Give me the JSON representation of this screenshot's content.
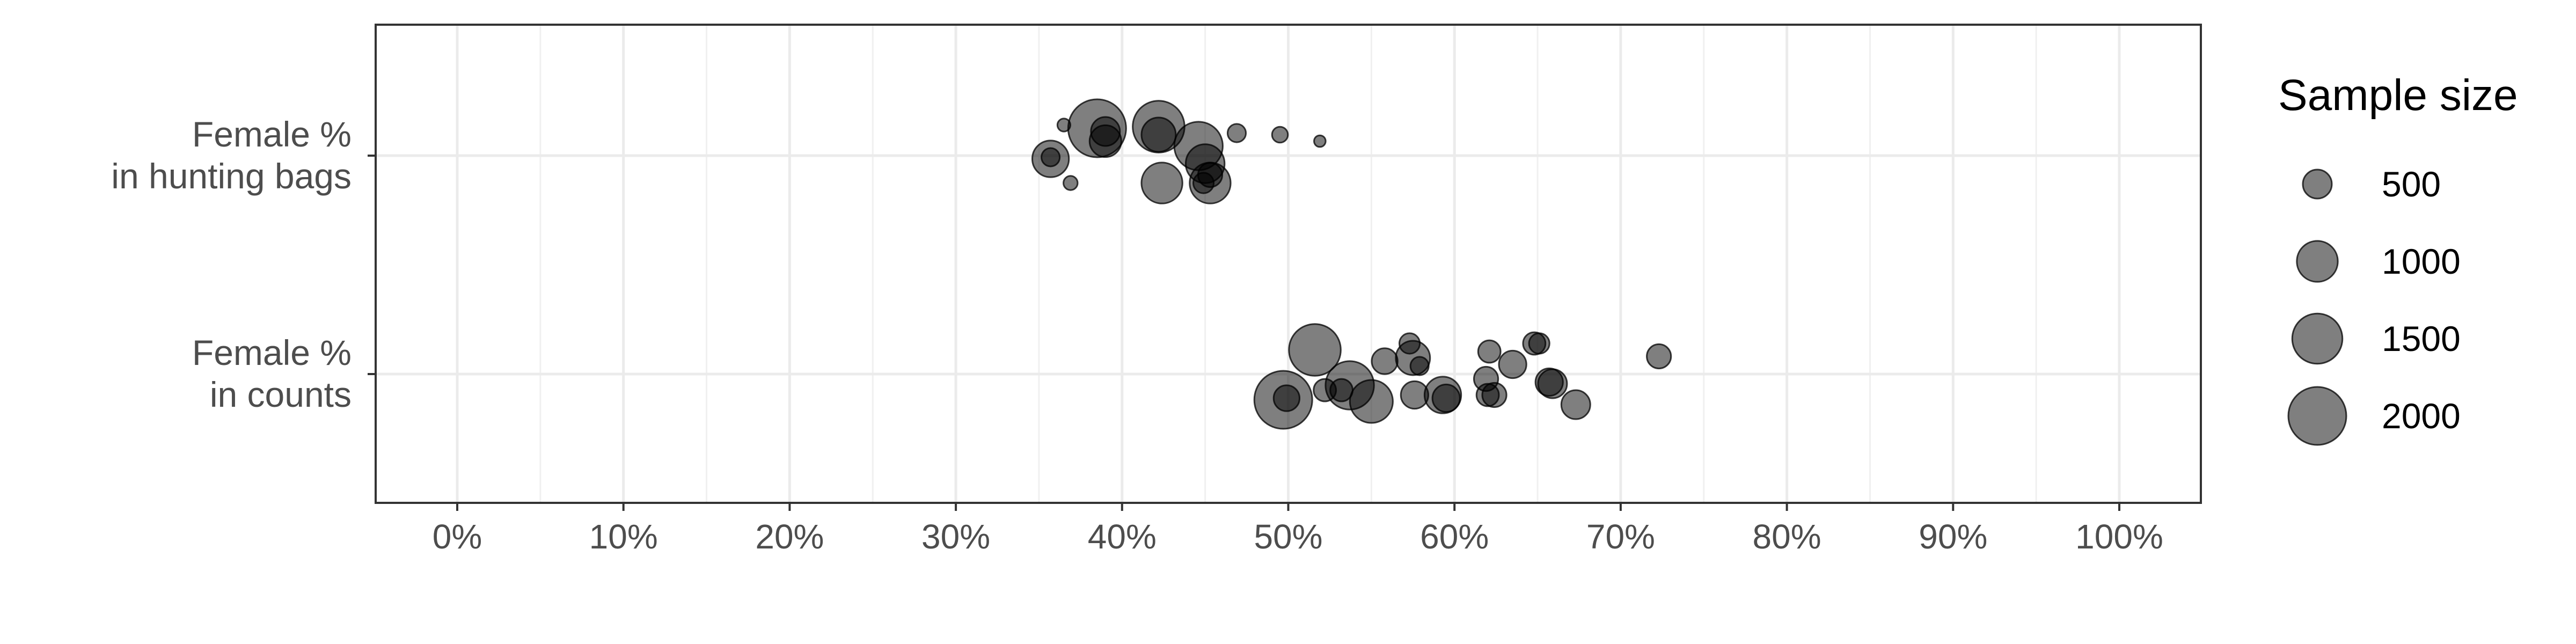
{
  "chart_data": {
    "type": "scatter",
    "title": "",
    "xlabel": "",
    "ylabel": "",
    "xlim": [
      0,
      1
    ],
    "x_tick_values": [
      0,
      0.1,
      0.2,
      0.3,
      0.4,
      0.5,
      0.6,
      0.7,
      0.8,
      0.9,
      1.0
    ],
    "x_tick_labels": [
      "0%",
      "10%",
      "20%",
      "30%",
      "40%",
      "50%",
      "60%",
      "70%",
      "80%",
      "90%",
      "100%"
    ],
    "categories": [
      "Female %\nin hunting bags",
      "Female %\nin counts"
    ],
    "category_lines": [
      [
        "Female %",
        "in hunting bags"
      ],
      [
        "Female %",
        "in counts"
      ]
    ],
    "grid": true,
    "point_color": "#000000",
    "point_opacity": 0.5,
    "legend": {
      "title": "Sample size",
      "position": "right",
      "values": [
        500,
        1000,
        1500,
        2000
      ],
      "labels": [
        "500",
        "1000",
        "1500",
        "2000"
      ]
    },
    "series": [
      {
        "category": "Female %\nin hunting bags",
        "points": [
          {
            "x": 0.365,
            "jitter": 0.19,
            "size": 100
          },
          {
            "x": 0.385,
            "jitter": 0.17,
            "size": 2000
          },
          {
            "x": 0.39,
            "jitter": 0.15,
            "size": 500
          },
          {
            "x": 0.39,
            "jitter": 0.09,
            "size": 600
          },
          {
            "x": 0.422,
            "jitter": 0.18,
            "size": 1600
          },
          {
            "x": 0.422,
            "jitter": 0.13,
            "size": 700
          },
          {
            "x": 0.446,
            "jitter": 0.06,
            "size": 1400
          },
          {
            "x": 0.469,
            "jitter": 0.14,
            "size": 200
          },
          {
            "x": 0.495,
            "jitter": 0.13,
            "size": 150
          },
          {
            "x": 0.519,
            "jitter": 0.09,
            "size": 80
          },
          {
            "x": 0.357,
            "jitter": -0.02,
            "size": 800
          },
          {
            "x": 0.357,
            "jitter": -0.01,
            "size": 200
          },
          {
            "x": 0.369,
            "jitter": -0.17,
            "size": 120
          },
          {
            "x": 0.45,
            "jitter": -0.05,
            "size": 900
          },
          {
            "x": 0.453,
            "jitter": -0.12,
            "size": 350
          },
          {
            "x": 0.424,
            "jitter": -0.17,
            "size": 1000
          },
          {
            "x": 0.449,
            "jitter": -0.17,
            "size": 250
          },
          {
            "x": 0.453,
            "jitter": -0.17,
            "size": 1000
          }
        ]
      },
      {
        "category": "Female %\nin counts",
        "points": [
          {
            "x": 0.516,
            "jitter": 0.15,
            "size": 1600
          },
          {
            "x": 0.573,
            "jitter": 0.19,
            "size": 250
          },
          {
            "x": 0.575,
            "jitter": 0.1,
            "size": 700
          },
          {
            "x": 0.558,
            "jitter": 0.08,
            "size": 400
          },
          {
            "x": 0.579,
            "jitter": 0.05,
            "size": 200
          },
          {
            "x": 0.621,
            "jitter": 0.14,
            "size": 300
          },
          {
            "x": 0.635,
            "jitter": 0.06,
            "size": 450
          },
          {
            "x": 0.648,
            "jitter": 0.19,
            "size": 300
          },
          {
            "x": 0.651,
            "jitter": 0.19,
            "size": 250
          },
          {
            "x": 0.723,
            "jitter": 0.11,
            "size": 350
          },
          {
            "x": 0.619,
            "jitter": -0.03,
            "size": 350
          },
          {
            "x": 0.657,
            "jitter": -0.05,
            "size": 450
          },
          {
            "x": 0.659,
            "jitter": -0.06,
            "size": 500
          },
          {
            "x": 0.537,
            "jitter": -0.07,
            "size": 1400
          },
          {
            "x": 0.522,
            "jitter": -0.1,
            "size": 300
          },
          {
            "x": 0.532,
            "jitter": -0.1,
            "size": 300
          },
          {
            "x": 0.497,
            "jitter": -0.16,
            "size": 2000
          },
          {
            "x": 0.499,
            "jitter": -0.15,
            "size": 400
          },
          {
            "x": 0.55,
            "jitter": -0.17,
            "size": 1100
          },
          {
            "x": 0.576,
            "jitter": -0.13,
            "size": 450
          },
          {
            "x": 0.593,
            "jitter": -0.13,
            "size": 800
          },
          {
            "x": 0.595,
            "jitter": -0.15,
            "size": 450
          },
          {
            "x": 0.62,
            "jitter": -0.13,
            "size": 300
          },
          {
            "x": 0.624,
            "jitter": -0.13,
            "size": 350
          },
          {
            "x": 0.673,
            "jitter": -0.19,
            "size": 500
          }
        ]
      }
    ]
  }
}
